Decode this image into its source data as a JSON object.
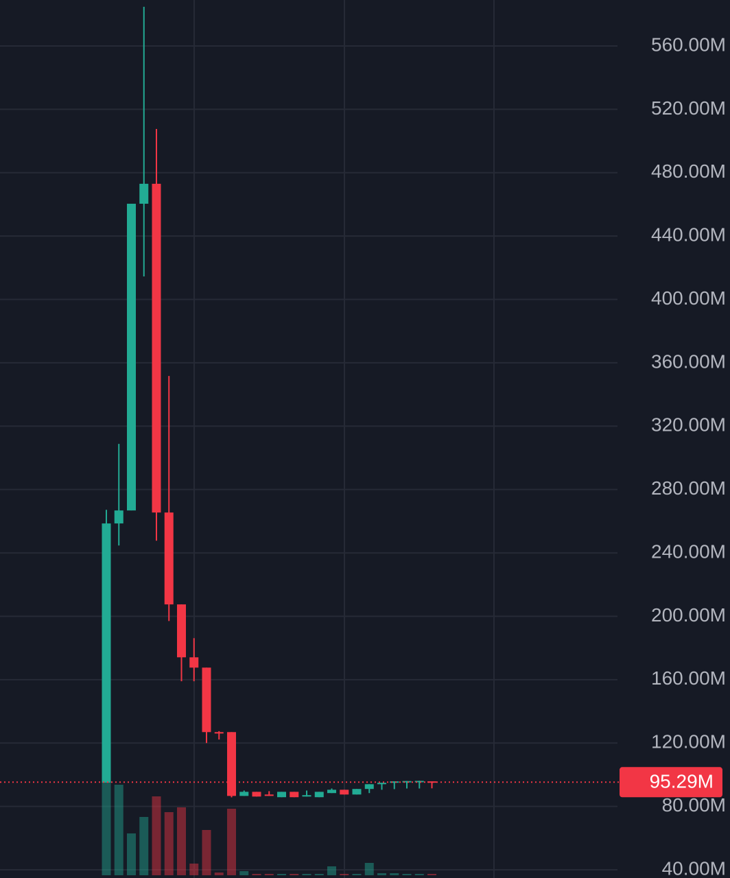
{
  "chart_data": {
    "type": "candlestick",
    "up_color": "#22ab94",
    "down_color": "#f23645",
    "grid": true,
    "ylim": [
      34.8,
      589
    ],
    "yticks": [
      {
        "value": 560,
        "label": "560.00M"
      },
      {
        "value": 520,
        "label": "520.00M"
      },
      {
        "value": 480,
        "label": "480.00M"
      },
      {
        "value": 440,
        "label": "440.00M"
      },
      {
        "value": 400,
        "label": "400.00M"
      },
      {
        "value": 360,
        "label": "360.00M"
      },
      {
        "value": 320,
        "label": "320.00M"
      },
      {
        "value": 280,
        "label": "280.00M"
      },
      {
        "value": 240,
        "label": "240.00M"
      },
      {
        "value": 200,
        "label": "200.00M"
      },
      {
        "value": 160,
        "label": "160.00M"
      },
      {
        "value": 120,
        "label": "120.00M"
      },
      {
        "value": 80,
        "label": "80.00M"
      },
      {
        "value": 40,
        "label": "40.00M"
      }
    ],
    "last_price": {
      "value": 95.29,
      "label": "95.29M"
    },
    "candles": [
      {
        "open": 95,
        "high": 267.2,
        "low": 95,
        "close": 258.6,
        "volume": 180
      },
      {
        "open": 258.6,
        "high": 308.8,
        "low": 244.7,
        "close": 266.8,
        "volume": 132
      },
      {
        "open": 266.8,
        "high": 460.4,
        "low": 266.8,
        "close": 460.4,
        "volume": 61
      },
      {
        "open": 460.4,
        "high": 584.7,
        "low": 414.5,
        "close": 473,
        "volume": 85
      },
      {
        "open": 473,
        "high": 507.6,
        "low": 247.7,
        "close": 265.5,
        "volume": 115
      },
      {
        "open": 265.5,
        "high": 351.7,
        "low": 197,
        "close": 207.5,
        "volume": 92
      },
      {
        "open": 207.5,
        "high": 207.5,
        "low": 159,
        "close": 174.1,
        "volume": 99
      },
      {
        "open": 174.1,
        "high": 186.2,
        "low": 159,
        "close": 167.6,
        "volume": 17
      },
      {
        "open": 167.6,
        "high": 167.6,
        "low": 120,
        "close": 126.9,
        "volume": 66
      },
      {
        "open": 126.9,
        "high": 127.5,
        "low": 122.2,
        "close": 126,
        "volume": 4
      },
      {
        "open": 126.9,
        "high": 126.9,
        "low": 85.7,
        "close": 86.6,
        "volume": 97
      },
      {
        "open": 86.6,
        "high": 90,
        "low": 86.6,
        "close": 89.2,
        "volume": 6
      },
      {
        "open": 89.2,
        "high": 89.2,
        "low": 86.2,
        "close": 86.2,
        "volume": 2
      },
      {
        "open": 87.5,
        "high": 89.6,
        "low": 86.6,
        "close": 86.6,
        "volume": 2
      },
      {
        "open": 85.8,
        "high": 89.2,
        "low": 85.8,
        "close": 89.2,
        "volume": 2
      },
      {
        "open": 89.2,
        "high": 89.2,
        "low": 85.8,
        "close": 85.8,
        "volume": 2
      },
      {
        "open": 86.2,
        "high": 90,
        "low": 86.2,
        "close": 87.1,
        "volume": 2
      },
      {
        "open": 85.8,
        "high": 89.2,
        "low": 85.8,
        "close": 89.2,
        "volume": 2
      },
      {
        "open": 88.4,
        "high": 91.3,
        "low": 88.4,
        "close": 90.5,
        "volume": 13
      },
      {
        "open": 90.5,
        "high": 90.5,
        "low": 87.5,
        "close": 87.5,
        "volume": 2
      },
      {
        "open": 87.5,
        "high": 91,
        "low": 87.5,
        "close": 91,
        "volume": 2
      },
      {
        "open": 91,
        "high": 94,
        "low": 88.4,
        "close": 94,
        "volume": 18
      },
      {
        "open": 94,
        "high": 94.9,
        "low": 90.5,
        "close": 94.9,
        "volume": 3
      },
      {
        "open": 94.9,
        "high": 95.8,
        "low": 90.9,
        "close": 95.8,
        "volume": 3
      },
      {
        "open": 95.8,
        "high": 96,
        "low": 91.3,
        "close": 96,
        "volume": 2
      },
      {
        "open": 96,
        "high": 96.2,
        "low": 91.3,
        "close": 96.1,
        "volume": 2
      },
      {
        "open": 95.8,
        "high": 95.8,
        "low": 91.4,
        "close": 95.29,
        "volume": 2
      }
    ]
  }
}
